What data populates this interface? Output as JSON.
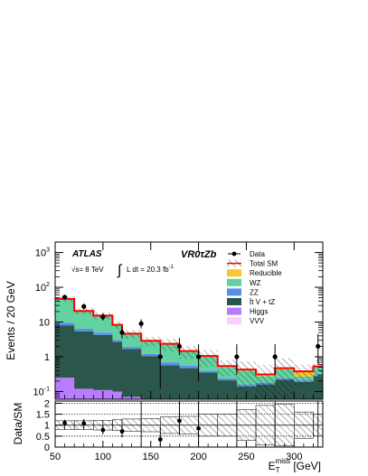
{
  "chart_data": {
    "type": "histogram",
    "x_edges": [
      50,
      60,
      70,
      80,
      90,
      100,
      110,
      120,
      140,
      160,
      180,
      200,
      220,
      240,
      260,
      280,
      300,
      320,
      330
    ],
    "xlim": [
      50,
      330
    ],
    "x_ticks": [
      50,
      100,
      150,
      200,
      250,
      300
    ],
    "main": {
      "ylabel": "Events / 20 GeV",
      "yscale": "log",
      "ylim": [
        0.06,
        2000
      ],
      "y_ticks": [
        {
          "value": 0.1,
          "label": "10",
          "exp": "-1"
        },
        {
          "value": 1,
          "label": "1",
          "exp": ""
        },
        {
          "value": 10,
          "label": "10",
          "exp": ""
        },
        {
          "value": 100,
          "label": "10",
          "exp": "2"
        },
        {
          "value": 1000,
          "label": "10",
          "exp": "3"
        }
      ],
      "stack": [
        {
          "name": "Higgs",
          "color": "#b87dff",
          "values": [
            0.25,
            0.25,
            0.12,
            0.12,
            0.11,
            0.11,
            0.1,
            0.07,
            0.05,
            0.04,
            0.04,
            0.04,
            0.03,
            0.03,
            0.03,
            0.03,
            0.03,
            0.03
          ]
        },
        {
          "name": "t̄t V + tZ",
          "color": "#2b564b",
          "values": [
            7.8,
            7.8,
            5.3,
            5.3,
            4.1,
            4.1,
            2.6,
            1.6,
            1.0,
            0.53,
            0.43,
            0.31,
            0.18,
            0.11,
            0.13,
            0.19,
            0.16,
            0.25
          ]
        },
        {
          "name": "ZZ",
          "color": "#5a8ee8",
          "values": [
            1.5,
            1.5,
            1.0,
            1.0,
            0.75,
            0.75,
            0.35,
            0.25,
            0.15,
            0.12,
            0.08,
            0.05,
            0.03,
            0.02,
            0.02,
            0.02,
            0.02,
            0.02
          ]
        },
        {
          "name": "WZ",
          "color": "#62d3a0",
          "values": [
            36,
            36,
            14,
            14,
            10,
            10,
            5,
            2.6,
            1.6,
            1.6,
            0.85,
            0.6,
            0.27,
            0.24,
            0.1,
            0.2,
            0.06,
            0.2
          ]
        },
        {
          "name": "Reducible",
          "color": "#f6c72f",
          "values": [
            0.8,
            0.8,
            0.4,
            0.4,
            0.3,
            0.3,
            0.2,
            0.1,
            0.08,
            0.06,
            0.05,
            0.04,
            0.02,
            0.02,
            0.02,
            0.02,
            0.1,
            0.02
          ]
        },
        {
          "name": "VVV",
          "color": "#ffccff",
          "values": [
            0.1,
            0.1,
            0.05,
            0.05,
            0.04,
            0.04,
            0.03,
            0.02,
            0.02,
            0.01,
            0.01,
            0.01,
            0.01,
            0.01,
            0.01,
            0.01,
            0.01,
            0.01
          ]
        }
      ],
      "data": [
        {
          "x": 60,
          "y": 52,
          "lo": 45,
          "hi": 60
        },
        {
          "x": 80,
          "y": 28,
          "lo": 23,
          "hi": 34
        },
        {
          "x": 100,
          "y": 14,
          "lo": 11,
          "hi": 18
        },
        {
          "x": 120,
          "y": 5,
          "lo": 3.3,
          "hi": 7.5
        },
        {
          "x": 140,
          "y": 9,
          "lo": 6.5,
          "hi": 12
        },
        {
          "x": 160,
          "y": 1.0,
          "lo": 0.12,
          "hi": 2.3
        },
        {
          "x": 180,
          "y": 2.0,
          "lo": 1.1,
          "hi": 3.5
        },
        {
          "x": 200,
          "y": 1.0,
          "lo": 0.2,
          "hi": 2.3
        },
        {
          "x": 240,
          "y": 1.0,
          "lo": 0.3,
          "hi": 2.3
        },
        {
          "x": 280,
          "y": 1.0,
          "lo": 0.3,
          "hi": 2.3
        },
        {
          "x": 325,
          "y": 2.0,
          "lo": 0.6,
          "hi": 4.5
        }
      ]
    },
    "ratio": {
      "ylabel": "Data/SM",
      "ylim": [
        0,
        2.1
      ],
      "y_ticks": [
        {
          "value": 0,
          "label": "0"
        },
        {
          "value": 0.5,
          "label": "0.5"
        },
        {
          "value": 1,
          "label": "1"
        },
        {
          "value": 1.5,
          "label": "1.5"
        },
        {
          "value": 2,
          "label": "2"
        }
      ],
      "reference_lines": [
        0.5,
        1,
        1.5,
        2
      ],
      "unc_lo": [
        0.8,
        0.8,
        0.8,
        0.8,
        0.78,
        0.78,
        0.75,
        0.72,
        0.7,
        0.62,
        0.6,
        0.5,
        0.5,
        0.3,
        0.1,
        0.05,
        0.4,
        0.5
      ],
      "unc_hi": [
        1.2,
        1.2,
        1.2,
        1.2,
        1.22,
        1.22,
        1.25,
        1.28,
        1.3,
        1.38,
        1.4,
        1.5,
        1.5,
        1.7,
        1.9,
        1.95,
        1.6,
        1.5
      ],
      "points": [
        {
          "x": 60,
          "y": 1.1,
          "lo": 0.95,
          "hi": 1.25
        },
        {
          "x": 80,
          "y": 1.08,
          "lo": 0.88,
          "hi": 1.28
        },
        {
          "x": 100,
          "y": 0.78,
          "lo": 0.58,
          "hi": 0.98
        },
        {
          "x": 120,
          "y": 0.72,
          "lo": 0.45,
          "hi": 1.0
        },
        {
          "x": 160,
          "y": 0.35,
          "lo": 0.05,
          "hi": 0.9
        },
        {
          "x": 180,
          "y": 1.2,
          "lo": 0.55,
          "hi": 2.2
        },
        {
          "x": 200,
          "y": 0.85,
          "lo": 0.15,
          "hi": 2.2
        }
      ],
      "offscale_x": [
        140,
        240,
        280,
        325
      ]
    },
    "xlabel": {
      "main": "E",
      "sub": "T",
      "sup": "miss",
      "unit": " [GeV]"
    },
    "total_sm_color": "#ff0000",
    "legend": {
      "placement": "top-right",
      "items": [
        {
          "label": "Data",
          "kind": "point"
        },
        {
          "label": "Total SM",
          "kind": "total"
        },
        {
          "label": "Reducible",
          "kind": "fill",
          "color": "#f6c72f"
        },
        {
          "label": "WZ",
          "kind": "fill",
          "color": "#62d3a0"
        },
        {
          "label": "ZZ",
          "kind": "fill",
          "color": "#5a8ee8"
        },
        {
          "label": "t̄t V + tZ",
          "kind": "fill",
          "color": "#2b564b"
        },
        {
          "label": "Higgs",
          "kind": "fill",
          "color": "#b87dff"
        },
        {
          "label": "VVV",
          "kind": "fill",
          "color": "#ffccff"
        }
      ]
    },
    "annotations": {
      "experiment": "ATLAS",
      "energy_pre": "√s= 8 TeV",
      "lumi_int": "∫",
      "lumi_text": "L dt = 20.3 fb",
      "lumi_exp": "-1",
      "region": "VR0τZb"
    }
  }
}
